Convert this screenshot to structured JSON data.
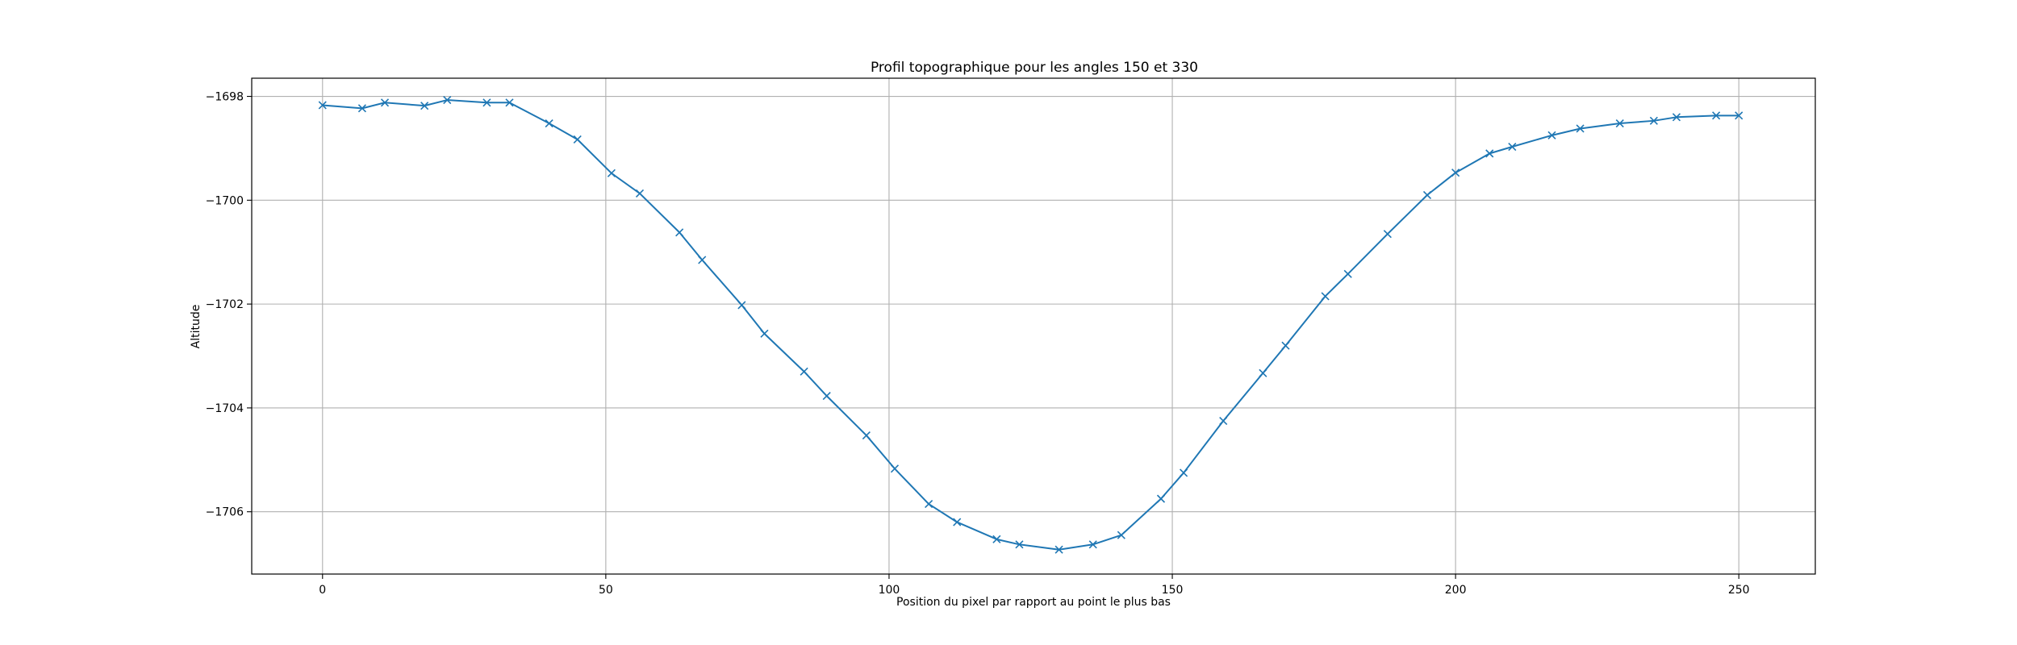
{
  "chart_data": {
    "type": "line",
    "title": "Profil topographique pour les angles 150 et 330",
    "xlabel": "Position du pixel par rapport au point le plus bas",
    "ylabel": "Altitude",
    "xlim": [
      -12.5,
      263.5
    ],
    "ylim": [
      -1707.2,
      -1697.65
    ],
    "xticks": [
      0,
      50,
      100,
      150,
      200,
      250
    ],
    "yticks": [
      -1698,
      -1700,
      -1702,
      -1704,
      -1706
    ],
    "xtick_labels": [
      "0",
      "50",
      "100",
      "150",
      "200",
      "250"
    ],
    "ytick_labels": [
      "−1698",
      "−1700",
      "−1702",
      "−1704",
      "−1706"
    ],
    "grid": true,
    "marker": "x",
    "color": "#1f77b4",
    "series": [
      {
        "x": [
          0,
          7,
          11,
          18,
          22,
          29,
          33,
          40,
          45,
          51,
          56,
          63,
          67,
          74,
          78,
          85,
          89,
          96,
          101,
          107,
          112,
          119,
          123,
          130,
          136,
          141,
          148,
          152,
          159,
          166,
          170,
          177,
          181,
          188,
          195,
          200,
          206,
          210,
          217,
          222,
          229,
          235,
          239,
          246,
          250
        ],
        "y": [
          -1698.17,
          -1698.23,
          -1698.12,
          -1698.18,
          -1698.07,
          -1698.12,
          -1698.12,
          -1698.52,
          -1698.83,
          -1699.48,
          -1699.87,
          -1700.62,
          -1701.15,
          -1702.02,
          -1702.57,
          -1703.3,
          -1703.77,
          -1704.53,
          -1705.17,
          -1705.85,
          -1706.2,
          -1706.53,
          -1706.63,
          -1706.73,
          -1706.63,
          -1706.45,
          -1705.75,
          -1705.25,
          -1704.25,
          -1703.33,
          -1702.8,
          -1701.85,
          -1701.42,
          -1700.65,
          -1699.9,
          -1699.47,
          -1699.1,
          -1698.97,
          -1698.75,
          -1698.62,
          -1698.52,
          -1698.47,
          -1698.4,
          -1698.37,
          -1698.37
        ]
      }
    ]
  }
}
